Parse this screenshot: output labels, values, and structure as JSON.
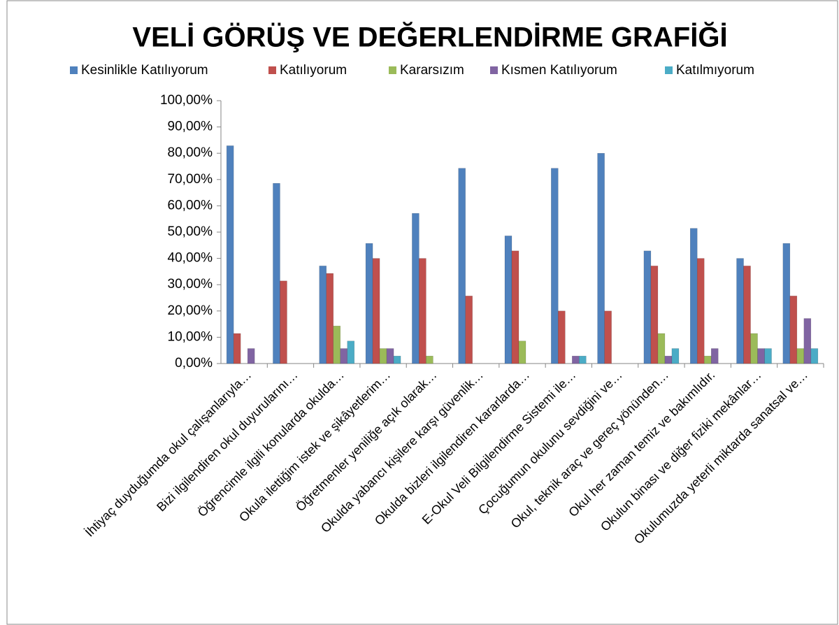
{
  "chart_data": {
    "type": "bar",
    "title": "VELİ GÖRÜŞ VE DEĞERLENDİRME GRAFİĞİ",
    "categories": [
      "İhtiyaç duyduğumda okul çalışanlarıyla…",
      "Bizi ilgilendiren okul duyurularını…",
      "Öğrencimle ilgili konularda okulda…",
      "Okula ilettiğim istek ve şikâyetlerim…",
      "Öğretmenler yeniliğe açık olarak…",
      "Okulda yabancı kişilere karşı güvenlik…",
      "Okulda bizleri ilgilendiren kararlarda…",
      "E-Okul Veli Bilgilendirme Sistemi ile…",
      "Çocuğumun okulunu sevdiğini ve…",
      "Okul, teknik araç ve gereç yönünden…",
      "Okul her zaman temiz ve bakımlıdır.",
      "Okulun binası ve diğer fiziki mekânlar…",
      "Okulumuzda yeterli miktarda sanatsal ve…"
    ],
    "series": [
      {
        "name": "Kesinlikle Katılıyorum",
        "color": "#4f81bd",
        "values": [
          82.86,
          68.57,
          37.14,
          45.71,
          57.14,
          74.29,
          48.57,
          74.29,
          80,
          42.86,
          51.43,
          40,
          45.71
        ]
      },
      {
        "name": "Katılıyorum",
        "color": "#c0504d",
        "values": [
          11.43,
          31.43,
          34.29,
          40,
          40,
          25.71,
          42.86,
          20,
          20,
          37.14,
          40,
          37.14,
          25.71
        ]
      },
      {
        "name": "Kararsızım",
        "color": "#9bbb59",
        "values": [
          0,
          0,
          14.29,
          5.71,
          2.86,
          0,
          8.57,
          0,
          0,
          11.43,
          2.86,
          11.43,
          5.71
        ]
      },
      {
        "name": "Kısmen Katılıyorum",
        "color": "#8064a2",
        "values": [
          5.71,
          0,
          5.71,
          5.71,
          0,
          0,
          0,
          2.86,
          0,
          2.86,
          5.71,
          5.71,
          17.14
        ]
      },
      {
        "name": "Katılmıyorum",
        "color": "#4bacc6",
        "values": [
          0,
          0,
          8.57,
          2.86,
          0,
          0,
          0,
          2.86,
          0,
          5.71,
          0,
          5.71,
          5.71
        ]
      }
    ],
    "ylim": [
      0,
      100
    ],
    "yticks": [
      {
        "value": 0,
        "label": "0,00%"
      },
      {
        "value": 10,
        "label": "10,00%"
      },
      {
        "value": 20,
        "label": "20,00%"
      },
      {
        "value": 30,
        "label": "30,00%"
      },
      {
        "value": 40,
        "label": "40,00%"
      },
      {
        "value": 50,
        "label": "50,00%"
      },
      {
        "value": 60,
        "label": "60,00%"
      },
      {
        "value": 70,
        "label": "70,00%"
      },
      {
        "value": 80,
        "label": "80,00%"
      },
      {
        "value": 90,
        "label": "90,00%"
      },
      {
        "value": 100,
        "label": "100,00%"
      }
    ],
    "legend": "top"
  }
}
